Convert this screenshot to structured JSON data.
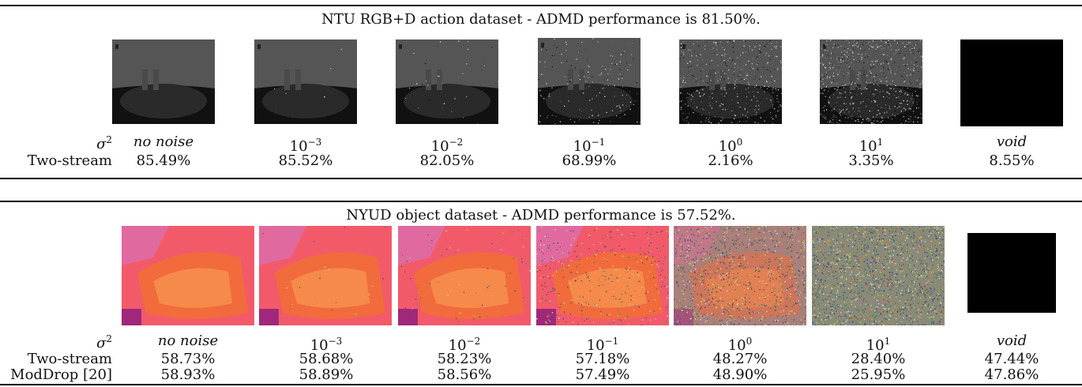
{
  "section1": {
    "caption": "NTU RGB+D action dataset - ADMD performance is 81.50%.",
    "sigma_label": "σ",
    "sigma_exp": "2",
    "sigma_values": [
      {
        "base": "no noise",
        "exp": ""
      },
      {
        "base": "10",
        "exp": "−3"
      },
      {
        "base": "10",
        "exp": "−2"
      },
      {
        "base": "10",
        "exp": "−1"
      },
      {
        "base": "10",
        "exp": "0"
      },
      {
        "base": "10",
        "exp": "1"
      },
      {
        "base": "void",
        "exp": ""
      }
    ],
    "rows": [
      {
        "label": "Two-stream",
        "values": [
          "85.49%",
          "85.52%",
          "82.05%",
          "68.99%",
          "2.16%",
          "3.35%",
          "8.55%"
        ]
      }
    ]
  },
  "section2": {
    "caption": "NYUD object dataset - ADMD performance is 57.52%.",
    "sigma_label": "σ",
    "sigma_exp": "2",
    "sigma_values": [
      {
        "base": "no noise",
        "exp": ""
      },
      {
        "base": "10",
        "exp": "−3"
      },
      {
        "base": "10",
        "exp": "−2"
      },
      {
        "base": "10",
        "exp": "−1"
      },
      {
        "base": "10",
        "exp": "0"
      },
      {
        "base": "10",
        "exp": "1"
      },
      {
        "base": "void",
        "exp": ""
      }
    ],
    "rows": [
      {
        "label": "Two-stream",
        "values": [
          "58.73%",
          "58.68%",
          "58.23%",
          "57.18%",
          "48.27%",
          "28.40%",
          "47.44%"
        ]
      },
      {
        "label": "ModDrop [20]",
        "values": [
          "58.93%",
          "58.89%",
          "58.56%",
          "57.49%",
          "48.90%",
          "25.95%",
          "47.86%"
        ]
      }
    ]
  },
  "colors": {
    "depth_bg": "#3c3c3c",
    "nyud_bg": "#f25a6a",
    "void": "#000000"
  },
  "images": {
    "ntu_noise_levels": [
      0,
      0.001,
      0.01,
      0.1,
      1,
      10,
      -1
    ],
    "nyud_noise_levels": [
      0,
      0.001,
      0.01,
      0.1,
      1,
      10,
      -1
    ]
  }
}
